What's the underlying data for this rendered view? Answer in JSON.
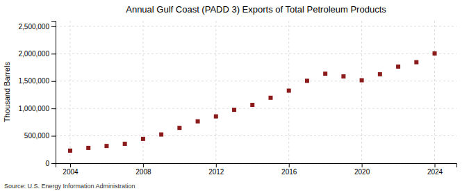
{
  "chart_data": {
    "type": "scatter",
    "title": "Annual Gulf Coast (PADD 3) Exports of Total Petroleum Products",
    "y_label": "Thousand Barrels",
    "annotations": [
      "Source: U.S. Energy Information Administration"
    ],
    "x": [
      2004,
      2005,
      2006,
      2007,
      2008,
      2009,
      2010,
      2011,
      2012,
      2013,
      2014,
      2015,
      2016,
      2017,
      2018,
      2019,
      2020,
      2021,
      2022,
      2023,
      2024
    ],
    "values": [
      230000,
      280000,
      315000,
      355000,
      445000,
      525000,
      645000,
      765000,
      855000,
      975000,
      1065000,
      1195000,
      1325000,
      1505000,
      1635000,
      1585000,
      1515000,
      1625000,
      1765000,
      1845000,
      2005000
    ],
    "color": "#8b1a1a",
    "marker": "square",
    "xlim": [
      2003.2,
      2025.2
    ],
    "xticks": [
      2004,
      2008,
      2012,
      2016,
      2020,
      2024
    ],
    "ylim": [
      0,
      2600000
    ],
    "yticks": [
      0,
      {
        "value": 500000,
        "label": "500,000"
      },
      {
        "value": 1000000,
        "label": "1,000,000"
      },
      {
        "value": 1500000,
        "label": "1,500,000"
      },
      {
        "value": 2000000,
        "label": "2,000,000"
      },
      {
        "value": 2500000,
        "label": "2,500,000"
      }
    ],
    "grid": true
  }
}
